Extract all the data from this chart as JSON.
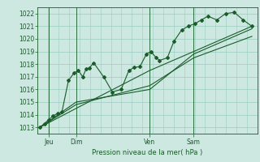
{
  "xlabel": "Pression niveau de la mer( hPa )",
  "bg_color": "#cce8e0",
  "grid_color": "#99ccc0",
  "line_color": "#1a5c2a",
  "ylim": [
    1012.5,
    1022.5
  ],
  "yticks": [
    1013,
    1014,
    1015,
    1016,
    1017,
    1018,
    1019,
    1020,
    1021,
    1022
  ],
  "day_labels": [
    "Jeu",
    "Dim",
    "Ven",
    "Sam"
  ],
  "day_positions": [
    0.05,
    0.175,
    0.51,
    0.71
  ],
  "series1_x": [
    0.01,
    0.03,
    0.05,
    0.07,
    0.09,
    0.11,
    0.14,
    0.165,
    0.185,
    0.205,
    0.22,
    0.235,
    0.255,
    0.3,
    0.34,
    0.38,
    0.415,
    0.44,
    0.465,
    0.495,
    0.515,
    0.54,
    0.555,
    0.59,
    0.62,
    0.655,
    0.685,
    0.715,
    0.745,
    0.775,
    0.815,
    0.855,
    0.895,
    0.935,
    0.975
  ],
  "series1_y": [
    1013.0,
    1013.3,
    1013.6,
    1013.9,
    1014.1,
    1014.2,
    1016.7,
    1017.3,
    1017.5,
    1017.0,
    1017.6,
    1017.7,
    1018.1,
    1017.0,
    1015.8,
    1016.0,
    1017.5,
    1017.75,
    1017.8,
    1018.8,
    1019.0,
    1018.5,
    1018.3,
    1018.5,
    1019.8,
    1020.7,
    1021.0,
    1021.2,
    1021.5,
    1021.8,
    1021.5,
    1022.0,
    1022.1,
    1021.5,
    1021.0
  ],
  "series2_x": [
    0.01,
    0.175,
    0.51,
    0.71,
    0.975
  ],
  "series2_y": [
    1013.0,
    1014.5,
    1017.5,
    1019.0,
    1021.0
  ],
  "series3_x": [
    0.01,
    0.175,
    0.51,
    0.71,
    0.975
  ],
  "series3_y": [
    1013.0,
    1014.8,
    1016.3,
    1018.5,
    1020.2
  ],
  "series4_x": [
    0.01,
    0.175,
    0.51,
    0.71,
    0.975
  ],
  "series4_y": [
    1013.0,
    1015.0,
    1016.0,
    1018.8,
    1020.8
  ]
}
